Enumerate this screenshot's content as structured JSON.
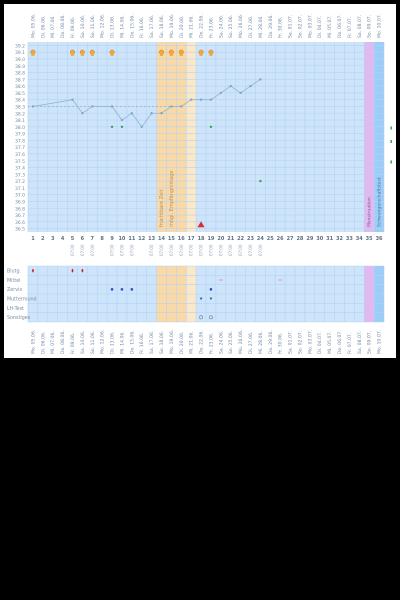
{
  "chart_data": {
    "type": "line",
    "days": [
      "1",
      "2",
      "3",
      "4",
      "5",
      "6",
      "7",
      "8",
      "9",
      "10",
      "11",
      "12",
      "13",
      "14",
      "15",
      "16",
      "17",
      "18",
      "19",
      "20",
      "21",
      "22",
      "23",
      "24",
      "25",
      "26",
      "27",
      "28",
      "29",
      "30",
      "31",
      "32",
      "33",
      "34",
      "35",
      "36"
    ],
    "top_dates": [
      "Mo. 05.06.",
      "Di. 06.06.",
      "Mi. 07.06.",
      "Do. 08.06.",
      "Fr. 09.06.",
      "Sa. 10.06.",
      "So. 11.06.",
      "Mo. 12.06.",
      "Di. 13.06.",
      "Mi. 14.06.",
      "Do. 15.06.",
      "Fr. 16.06.",
      "Sa. 17.06.",
      "So. 18.06.",
      "Mo. 19.06.",
      "Di. 20.06.",
      "Mi. 21.06.",
      "Do. 22.06.",
      "Fr. 23.06.",
      "Sa. 24.06.",
      "So. 25.06.",
      "Mo. 26.06.",
      "Di. 27.06.",
      "Mi. 28.06.",
      "Do. 29.06.",
      "Fr. 30.06.",
      "Sa. 01.07.",
      "So. 02.07.",
      "Mo. 03.07.",
      "Di. 04.07.",
      "Mi. 05.07.",
      "Do. 06.07.",
      "Fr. 07.07.",
      "Sa. 08.07.",
      "So. 09.07.",
      "Mo. 10.07."
    ],
    "bottom_dates": [
      "Mo. 05.06.",
      "Di. 06.06.",
      "Mi. 07.06.",
      "Do. 08.06.",
      "Fr. 09.06.",
      "Sa. 10.06.",
      "So. 11.06.",
      "Mo. 12.06.",
      "Di. 13.06.",
      "Mi. 14.06.",
      "Do. 15.06.",
      "Fr. 16.06.",
      "Sa. 17.06.",
      "So. 18.06.",
      "Mo. 19.06.",
      "Di. 20.06.",
      "Mi. 21.06.",
      "Do. 22.06.",
      "Fr. 23.06.",
      "Sa. 24.06.",
      "So. 25.06.",
      "Mo. 26.06.",
      "Di. 27.06.",
      "Mi. 28.06.",
      "Do. 29.06.",
      "Fr. 30.06.",
      "Sa. 01.07.",
      "So. 02.07.",
      "Mo. 03.07.",
      "Di. 04.07.",
      "Mi. 05.07.",
      "Do. 06.07.",
      "Fr. 07.07.",
      "Sa. 08.07.",
      "So. 09.07.",
      "Mo. 10.07."
    ],
    "time_labels": [
      "",
      "",
      "",
      "",
      "07:00",
      "07:00",
      "07:00",
      "",
      "07:00",
      "07:00",
      "07:00",
      "",
      "07:00",
      "07:00",
      "07:00",
      "07:00",
      "07:00",
      "07:00",
      "07:00",
      "07:00",
      "07:00",
      "07:00",
      "07:00",
      "07:00",
      "",
      "",
      "",
      "",
      "",
      "",
      "",
      "",
      "",
      "",
      "",
      ""
    ],
    "y_ticks": [
      36.5,
      36.6,
      36.7,
      36.8,
      36.9,
      37.0,
      37.1,
      37.2,
      37.3,
      37.4,
      37.5,
      37.6,
      37.7,
      37.8,
      37.9,
      38.0,
      38.1,
      38.2,
      38.3,
      38.4,
      38.5,
      38.6,
      38.7,
      38.8,
      38.9,
      39.0,
      39.1,
      39.2
    ],
    "ylim": [
      36.45,
      39.25
    ],
    "coverline": 38.3,
    "temperatures": [
      38.3,
      null,
      null,
      null,
      38.4,
      38.2,
      38.3,
      null,
      38.3,
      38.1,
      38.2,
      38.0,
      38.2,
      38.2,
      38.3,
      38.3,
      38.4,
      38.4,
      38.4,
      38.5,
      38.6,
      38.5,
      38.6,
      38.7,
      null,
      null,
      null,
      null,
      null,
      null,
      null,
      null,
      null,
      null,
      null,
      null
    ],
    "green_points": [
      [
        9,
        38.0
      ],
      [
        10,
        38.0
      ],
      [
        19,
        38.0
      ],
      [
        24,
        37.2
      ]
    ],
    "right_markers": [
      "38.0",
      "37.8",
      "37.5"
    ],
    "sex_days": [
      1,
      5,
      6,
      7,
      9,
      14,
      15,
      16,
      18,
      19
    ],
    "fertile_window": {
      "from": 14,
      "to": 17,
      "label": "fruchtbare Zeit"
    },
    "ovulation_window": {
      "from": 14,
      "to": 16,
      "label": "mögl. Empfängnistage"
    },
    "violet_day": {
      "day": 35,
      "label": "Menstruation"
    },
    "blue_day": {
      "day": 36,
      "label": "Schwangerschaftstest"
    },
    "warning_day": 18,
    "symptoms": {
      "labels": [
        "Blutg.",
        "Mittel",
        "Zervix",
        "Muttermund",
        "LH-Test",
        "Sonstiges"
      ],
      "bleeding_days": [
        1,
        5,
        6
      ],
      "mittel_days": [
        20,
        26
      ],
      "blue_days": [
        9,
        10,
        11,
        19
      ],
      "cervix_down_days": [
        18,
        19
      ],
      "ring_days": [
        18,
        19
      ]
    }
  }
}
